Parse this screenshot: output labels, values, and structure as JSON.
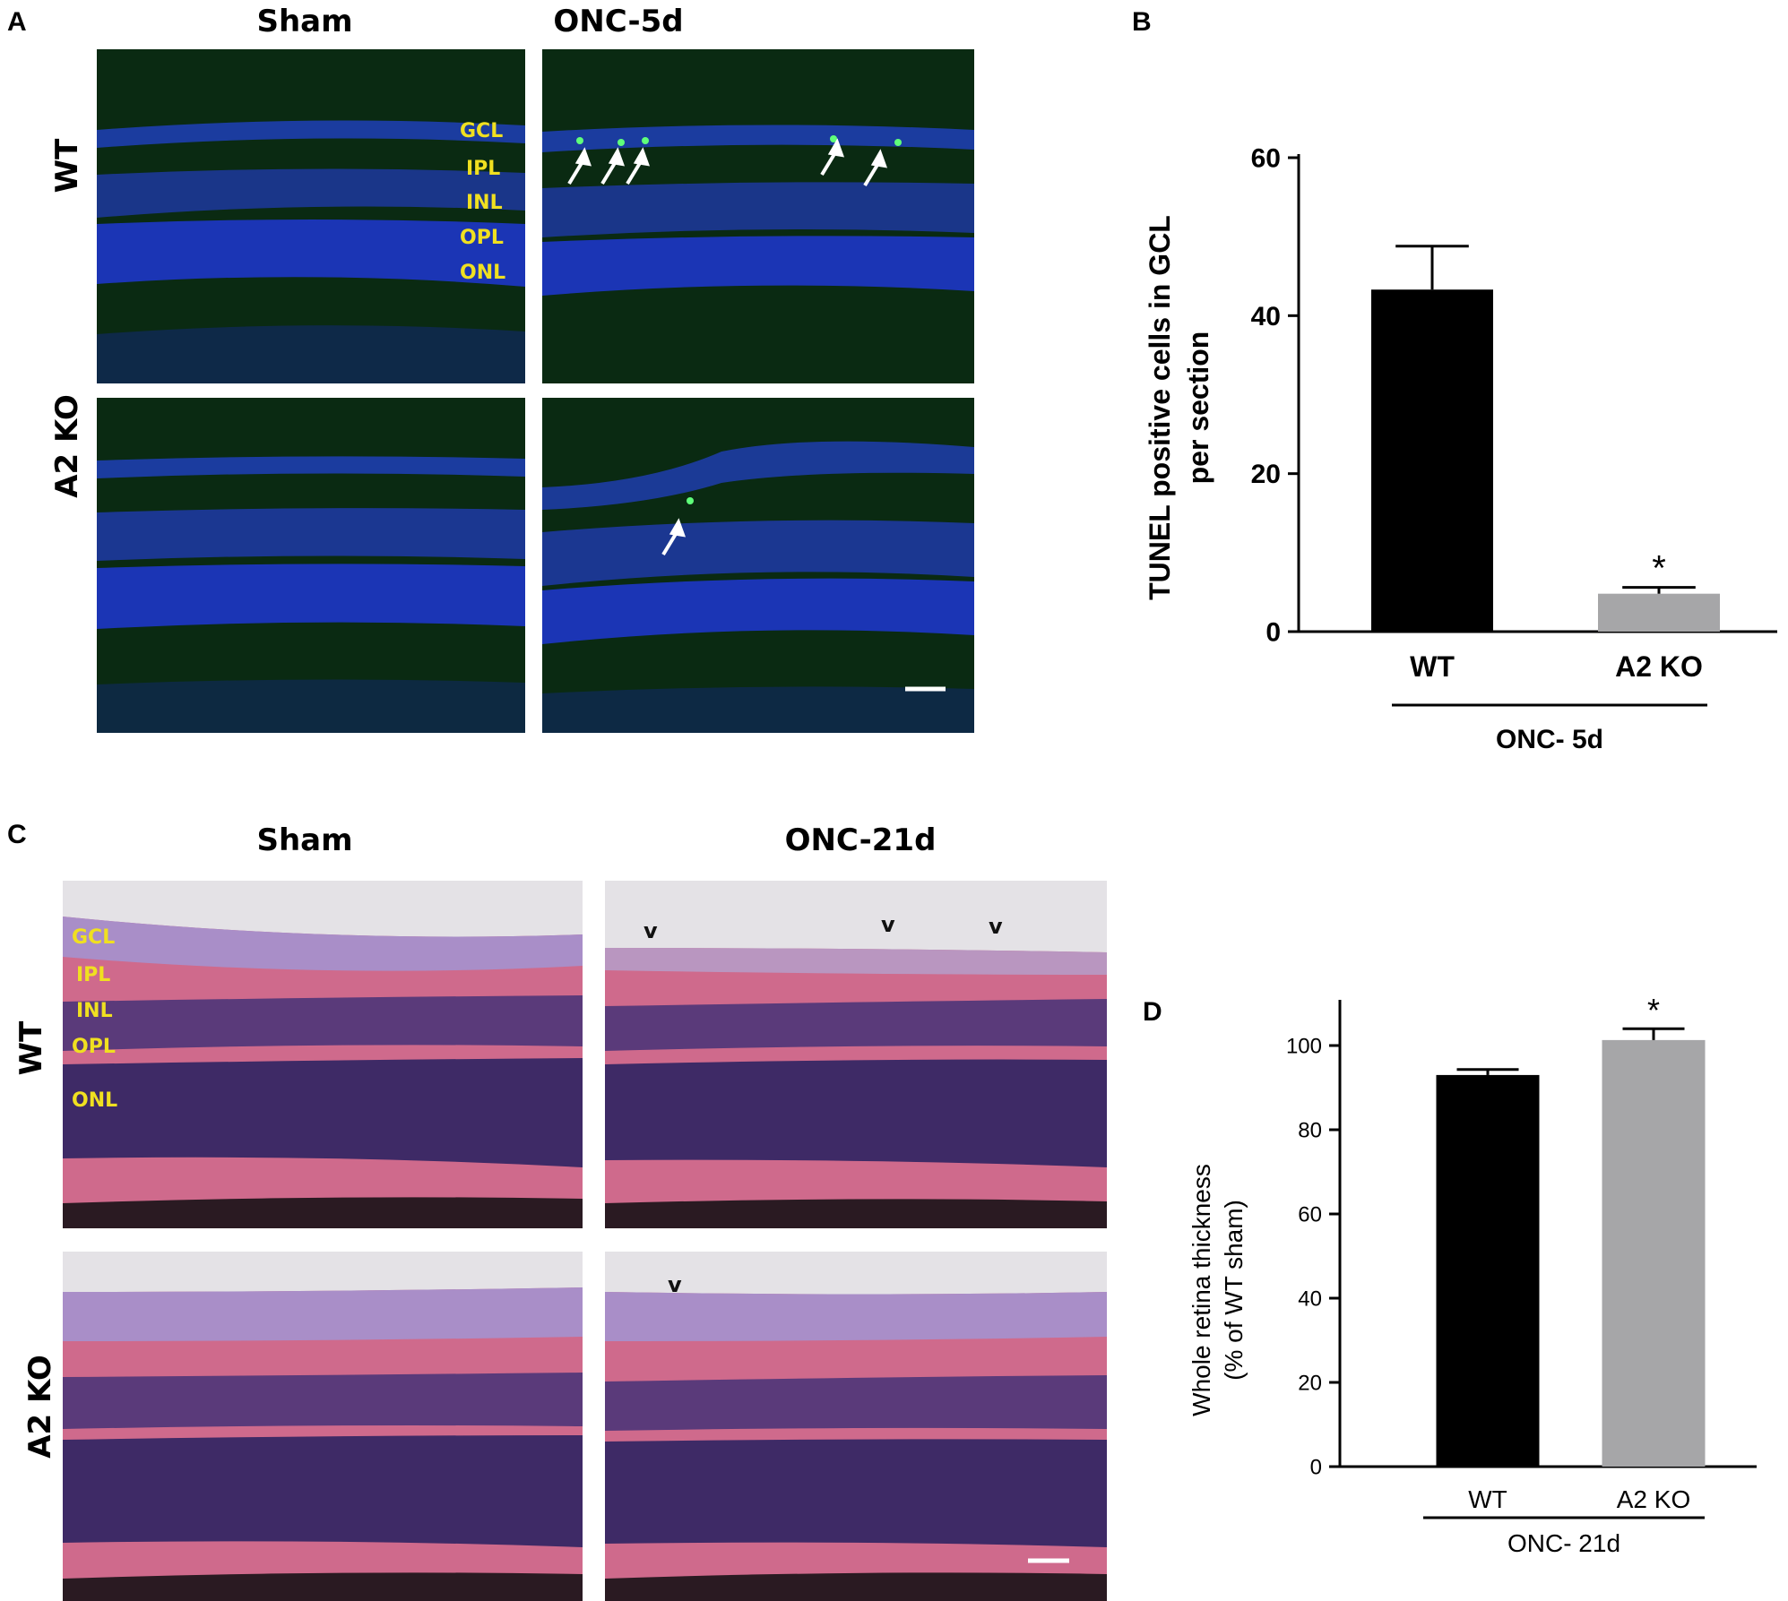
{
  "panel_A": {
    "letter": "A",
    "col_headers": [
      "Sham",
      "ONC-5d"
    ],
    "row_headers": [
      "WT",
      "A2 KO"
    ],
    "layer_labels": [
      "GCL",
      "IPL",
      "INL",
      "OPL",
      "ONL"
    ]
  },
  "panel_B": {
    "letter": "B",
    "ylabel_line1": "TUNEL positive cells in GCL",
    "ylabel_line2": "per section",
    "group_label": "ONC- 5d",
    "significance": "*"
  },
  "panel_C": {
    "letter": "C",
    "col_headers": [
      "Sham",
      "ONC-21d"
    ],
    "row_headers": [
      "WT",
      "A2 KO"
    ],
    "layer_labels": [
      "GCL",
      "IPL",
      "INL",
      "OPL",
      "ONL"
    ],
    "vacuole_mark": "v"
  },
  "panel_D": {
    "letter": "D",
    "ylabel_line1": "Whole retina thickness",
    "ylabel_line2": "(% of WT sham)",
    "group_label": "ONC- 21d",
    "significance": "*"
  },
  "chart_data": [
    {
      "panel": "B",
      "type": "bar",
      "categories": [
        "WT",
        "A2 KO"
      ],
      "values": [
        43.3,
        4.8
      ],
      "errors": [
        5.5,
        0.8
      ],
      "bar_colors": [
        "#000000",
        "#a6a6a8"
      ],
      "ylabel": "TUNEL positive cells in GCL per section",
      "ylim": [
        0,
        60
      ],
      "yticks": [
        0,
        20,
        40,
        60
      ],
      "annotations": [
        {
          "category": "A2 KO",
          "text": "*"
        }
      ]
    },
    {
      "panel": "D",
      "type": "bar",
      "categories": [
        "WT",
        "A2 KO"
      ],
      "values": [
        93.0,
        101.3
      ],
      "errors": [
        1.3,
        2.7
      ],
      "bar_colors": [
        "#000000",
        "#a6a6a8"
      ],
      "ylabel": "Whole retina thickness (% of WT sham)",
      "ylim": [
        0,
        110
      ],
      "yticks": [
        0,
        20,
        40,
        60,
        80,
        100
      ],
      "annotations": [
        {
          "category": "A2 KO",
          "text": "*"
        }
      ]
    }
  ]
}
